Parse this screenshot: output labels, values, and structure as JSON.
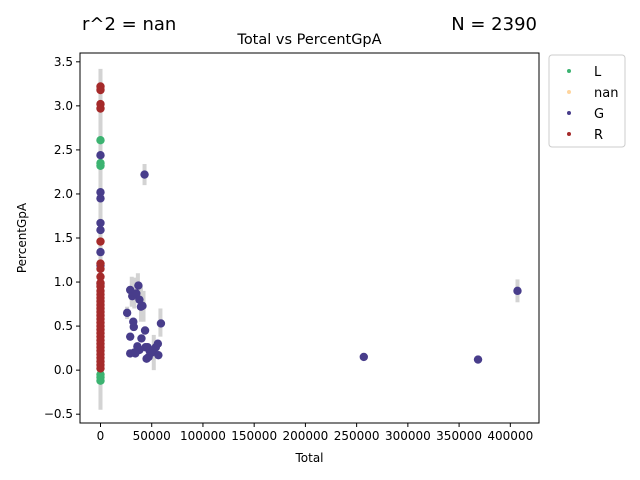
{
  "header": {
    "stat_left": "r^2 = nan",
    "stat_right": "N = 2390"
  },
  "chart_data": {
    "type": "scatter",
    "title": "Total vs PercentGpA",
    "xlabel": "Total",
    "ylabel": "PercentGpA",
    "xlim": [
      -20000,
      428000
    ],
    "ylim": [
      -0.6,
      3.6
    ],
    "xticks": [
      0,
      50000,
      100000,
      150000,
      200000,
      250000,
      300000,
      350000,
      400000
    ],
    "xtick_labels": [
      "0",
      "50000",
      "100000",
      "150000",
      "200000",
      "250000",
      "300000",
      "350000",
      "400000"
    ],
    "yticks": [
      -0.5,
      0.0,
      0.5,
      1.0,
      1.5,
      2.0,
      2.5,
      3.0,
      3.5
    ],
    "ytick_labels": [
      "−0.5",
      "0.0",
      "0.5",
      "1.0",
      "1.5",
      "2.0",
      "2.5",
      "3.0",
      "3.5"
    ],
    "grid": false,
    "legend_position": "outside-top-right",
    "error_bar_color": "#d3d3d3",
    "series": [
      {
        "name": "L",
        "color": "#3cb371",
        "points": [
          [
            0,
            2.61
          ],
          [
            0,
            2.35
          ],
          [
            0,
            2.32
          ],
          [
            0,
            -0.08
          ],
          [
            0,
            -0.12
          ],
          [
            0,
            -0.05
          ]
        ]
      },
      {
        "name": "nan",
        "color": "#ffd59e",
        "points": []
      },
      {
        "name": "G",
        "color": "#483d8b",
        "points": [
          [
            0,
            2.44
          ],
          [
            0,
            2.02
          ],
          [
            0,
            1.95
          ],
          [
            0,
            1.67
          ],
          [
            0,
            1.59
          ],
          [
            0,
            1.34
          ],
          [
            0,
            1.19
          ],
          [
            0,
            0.98
          ],
          [
            26000,
            0.65
          ],
          [
            29000,
            0.91
          ],
          [
            29000,
            0.38
          ],
          [
            31000,
            0.84
          ],
          [
            32000,
            0.55
          ],
          [
            32500,
            0.49
          ],
          [
            35000,
            0.87
          ],
          [
            37000,
            0.96
          ],
          [
            38000,
            0.8
          ],
          [
            39500,
            0.72
          ],
          [
            41000,
            0.73
          ],
          [
            43500,
            0.45
          ],
          [
            33000,
            0.2
          ],
          [
            36000,
            0.27
          ],
          [
            38000,
            0.23
          ],
          [
            40000,
            0.36
          ],
          [
            43000,
            2.22
          ],
          [
            29000,
            0.19
          ],
          [
            34000,
            0.19
          ],
          [
            44000,
            0.26
          ],
          [
            46000,
            0.26
          ],
          [
            48000,
            0.22
          ],
          [
            45000,
            0.13
          ],
          [
            47000,
            0.15
          ],
          [
            50000,
            0.2
          ],
          [
            52000,
            0.23
          ],
          [
            54000,
            0.26
          ],
          [
            56000,
            0.3
          ],
          [
            56500,
            0.17
          ],
          [
            59000,
            0.53
          ],
          [
            257000,
            0.15
          ],
          [
            368500,
            0.12
          ],
          [
            407000,
            0.9
          ]
        ],
        "error_bars": [
          [
            26000,
            0.58,
            0.72
          ],
          [
            30500,
            0.72,
            1.06
          ],
          [
            33000,
            0.7,
            1.05
          ],
          [
            36500,
            0.8,
            1.1
          ],
          [
            39500,
            0.55,
            0.95
          ],
          [
            42000,
            0.55,
            0.9
          ],
          [
            43000,
            2.1,
            2.34
          ],
          [
            52000,
            0.0,
            0.4
          ],
          [
            58500,
            0.38,
            0.7
          ],
          [
            407000,
            0.77,
            1.03
          ]
        ]
      },
      {
        "name": "R",
        "color": "#a52a2a",
        "points": [
          [
            0,
            3.22
          ],
          [
            0,
            3.18
          ],
          [
            0,
            3.02
          ],
          [
            0,
            2.97
          ],
          [
            0,
            1.46
          ],
          [
            0,
            1.21
          ],
          [
            0,
            1.15
          ],
          [
            0,
            1.06
          ],
          [
            0,
            0.99
          ],
          [
            0,
            0.95
          ],
          [
            0,
            0.9
          ],
          [
            0,
            0.86
          ],
          [
            0,
            0.82
          ],
          [
            0,
            0.78
          ],
          [
            0,
            0.74
          ],
          [
            0,
            0.7
          ],
          [
            0,
            0.66
          ],
          [
            0,
            0.62
          ],
          [
            0,
            0.58
          ],
          [
            0,
            0.54
          ],
          [
            0,
            0.5
          ],
          [
            0,
            0.46
          ],
          [
            0,
            0.42
          ],
          [
            0,
            0.38
          ],
          [
            0,
            0.34
          ],
          [
            0,
            0.3
          ],
          [
            0,
            0.26
          ],
          [
            0,
            0.22
          ],
          [
            0,
            0.18
          ],
          [
            0,
            0.14
          ],
          [
            0,
            0.1
          ],
          [
            0,
            0.06
          ],
          [
            0,
            0.02
          ]
        ],
        "error_bars": [
          [
            0,
            -0.45,
            3.42
          ]
        ]
      }
    ]
  }
}
